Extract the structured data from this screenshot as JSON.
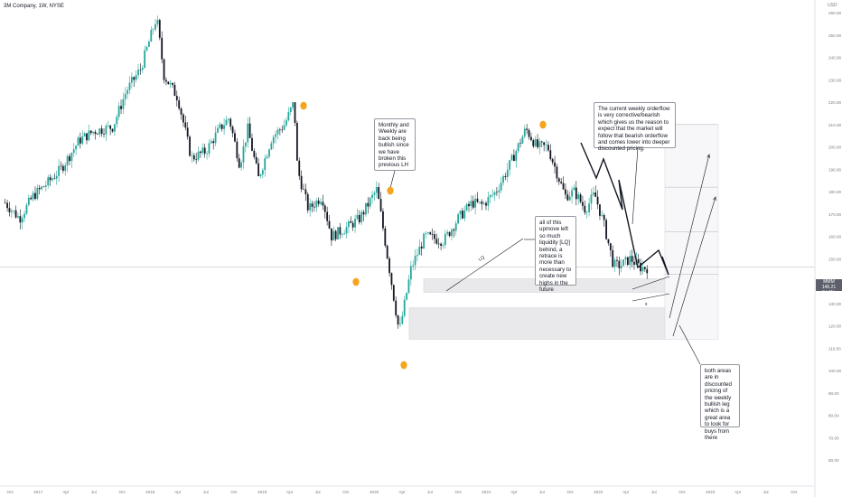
{
  "header": {
    "symbol": "3M Company, 1W, NYSE"
  },
  "annotations": {
    "note_monthly": "Monthly and Weekly are back being bullish since we have broken this previous LH",
    "note_liquidity": "all of this upmove left so much liquidity [LQ] behind, a retrace is more than necessary to create new highs in the future",
    "note_orderflow": "The current weekly orderflow is very corrective/bearish which gives us the reason to expect that the market will follow that bearish orderflow and comes lower into deeper discounted pricing.",
    "note_areas": "both areas are in discounted pricing of the weekly bullish leg which is a great area to look for buys from there",
    "lq_label": "LQ",
    "x_label": "x"
  },
  "price_tag": {
    "symbol": "MMM",
    "price": "146.21",
    "countdown": "3d 11h"
  },
  "colors": {
    "up": "#26a69a",
    "down": "#131722",
    "marker": "#f7a41d",
    "zone": "#e9e9ec",
    "zone_border": "#c9cbd0"
  },
  "chart_data": {
    "type": "candlestick",
    "symbol": "MMM",
    "timeframe": "1W",
    "currency": "USD",
    "y_ticks": [
      60,
      70,
      80,
      90,
      100,
      110,
      120,
      130,
      140,
      150,
      160,
      170,
      180,
      190,
      200,
      210,
      220,
      230,
      240,
      250,
      260
    ],
    "y_tick_labels": [
      "60.00",
      "70.00",
      "80.00",
      "90.00",
      "100.00",
      "110.00",
      "120.00",
      "130.00",
      "140.00",
      "150.00",
      "160.00",
      "170.00",
      "180.00",
      "190.00",
      "200.00",
      "210.00",
      "220.00",
      "230.00",
      "240.00",
      "250.00",
      "260.00"
    ],
    "y_currency_label": "USD",
    "x_ticks": [
      "Oct",
      "2017",
      "Apr",
      "Jul",
      "Oct",
      "2018",
      "Apr",
      "Jul",
      "Oct",
      "2019",
      "Apr",
      "Jul",
      "Oct",
      "2020",
      "Apr",
      "Jul",
      "Oct",
      "2021",
      "Apr",
      "Jul",
      "Oct",
      "2022",
      "Apr",
      "Jul",
      "Oct",
      "2023",
      "Apr",
      "Jul",
      "Oct"
    ],
    "last_price": 146.21,
    "price_path": [
      [
        "2016-09-15",
        175
      ],
      [
        "2016-11-01",
        168
      ],
      [
        "2016-12-15",
        178
      ],
      [
        "2017-02-01",
        184
      ],
      [
        "2017-03-15",
        190
      ],
      [
        "2017-05-15",
        203
      ],
      [
        "2017-07-01",
        207
      ],
      [
        "2017-09-01",
        209
      ],
      [
        "2017-10-15",
        225
      ],
      [
        "2017-12-01",
        235
      ],
      [
        "2018-01-22",
        258
      ],
      [
        "2018-02-15",
        232
      ],
      [
        "2018-04-01",
        222
      ],
      [
        "2018-05-15",
        195
      ],
      [
        "2018-07-01",
        198
      ],
      [
        "2018-08-15",
        208
      ],
      [
        "2018-09-15",
        213
      ],
      [
        "2018-10-20",
        192
      ],
      [
        "2018-11-15",
        208
      ],
      [
        "2018-12-20",
        186
      ],
      [
        "2019-02-01",
        204
      ],
      [
        "2019-03-15",
        210
      ],
      [
        "2019-04-15",
        220
      ],
      [
        "2019-04-26",
        190
      ],
      [
        "2019-06-01",
        172
      ],
      [
        "2019-07-15",
        178
      ],
      [
        "2019-08-15",
        160
      ],
      [
        "2019-10-05",
        164
      ],
      [
        "2019-11-15",
        168
      ],
      [
        "2020-01-10",
        181
      ],
      [
        "2020-02-01",
        162
      ],
      [
        "2020-03-23",
        117
      ],
      [
        "2020-05-01",
        146
      ],
      [
        "2020-06-15",
        160
      ],
      [
        "2020-08-15",
        158
      ],
      [
        "2020-10-01",
        168
      ],
      [
        "2020-11-15",
        175
      ],
      [
        "2020-12-20",
        174
      ],
      [
        "2021-02-01",
        180
      ],
      [
        "2021-03-15",
        191
      ],
      [
        "2021-05-10",
        208
      ],
      [
        "2021-06-15",
        200
      ],
      [
        "2021-07-20",
        200
      ],
      [
        "2021-08-20",
        188
      ],
      [
        "2021-09-15",
        178
      ],
      [
        "2021-10-15",
        180
      ],
      [
        "2021-11-20",
        172
      ],
      [
        "2021-12-20",
        179
      ],
      [
        "2022-01-20",
        165
      ],
      [
        "2022-02-20",
        147
      ],
      [
        "2022-03-15",
        147
      ],
      [
        "2022-04-15",
        150
      ],
      [
        "2022-05-20",
        146
      ],
      [
        "2022-06-10",
        146
      ]
    ],
    "demand_zones": [
      [
        135,
        141
      ],
      [
        114,
        128
      ]
    ],
    "fib_levels": [
      210,
      182,
      162,
      143
    ],
    "swing_markers": [
      "2019-03-20",
      "2019-10-01",
      "2020-01-10",
      "2020-03-23",
      "2021-05-10"
    ]
  }
}
